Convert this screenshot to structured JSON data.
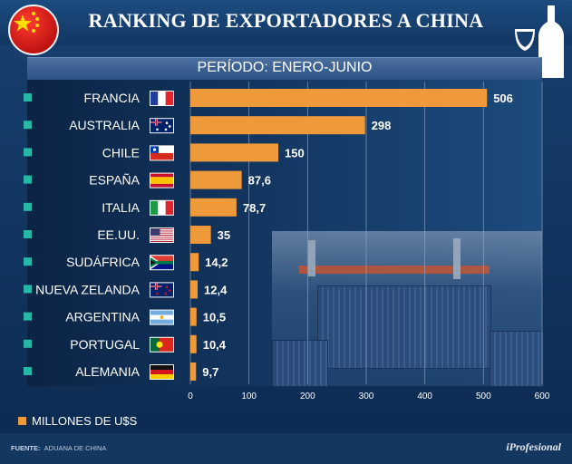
{
  "header": {
    "title": "RANKING DE EXPORTADORES A CHINA",
    "subtitle": "PERÍODO: ENERO-JUNIO"
  },
  "legend": {
    "label": "MILLONES DE U$S"
  },
  "footer": {
    "source_label": "FUENTE:",
    "source_text": "ADUANA DE CHINA",
    "brand": "iProfesional"
  },
  "icons": {
    "logo": "china-flag-icon",
    "wine": "wine-glass-bottle-icon"
  },
  "colors": {
    "bar": "#ef9a3a",
    "background": "#0f2f57",
    "bullet": "#27b7a7"
  },
  "chart_data": {
    "type": "bar",
    "orientation": "horizontal",
    "title": "RANKING DE EXPORTADORES A CHINA",
    "subtitle": "PERÍODO: ENERO-JUNIO",
    "xlabel": "MILLONES DE U$S",
    "xlim": [
      0,
      600
    ],
    "xticks": [
      0,
      100,
      200,
      300,
      400,
      500,
      600
    ],
    "grid": true,
    "categories": [
      "FRANCIA",
      "AUSTRALIA",
      "CHILE",
      "ESPAÑA",
      "ITALIA",
      "EE.UU.",
      "SUDÁFRICA",
      "NUEVA ZELANDA",
      "ARGENTINA",
      "PORTUGAL",
      "ALEMANIA"
    ],
    "values": [
      506,
      298,
      150,
      87.6,
      78.7,
      35,
      14.2,
      12.4,
      10.5,
      10.4,
      9.7
    ],
    "value_labels": [
      "506",
      "298",
      "150",
      "87,6",
      "78,7",
      "35",
      "14,2",
      "12,4",
      "10,5",
      "10,4",
      "9,7"
    ],
    "flags": [
      "france-flag-icon",
      "australia-flag-icon",
      "chile-flag-icon",
      "spain-flag-icon",
      "italy-flag-icon",
      "usa-flag-icon",
      "south-africa-flag-icon",
      "new-zealand-flag-icon",
      "argentina-flag-icon",
      "portugal-flag-icon",
      "germany-flag-icon"
    ]
  }
}
